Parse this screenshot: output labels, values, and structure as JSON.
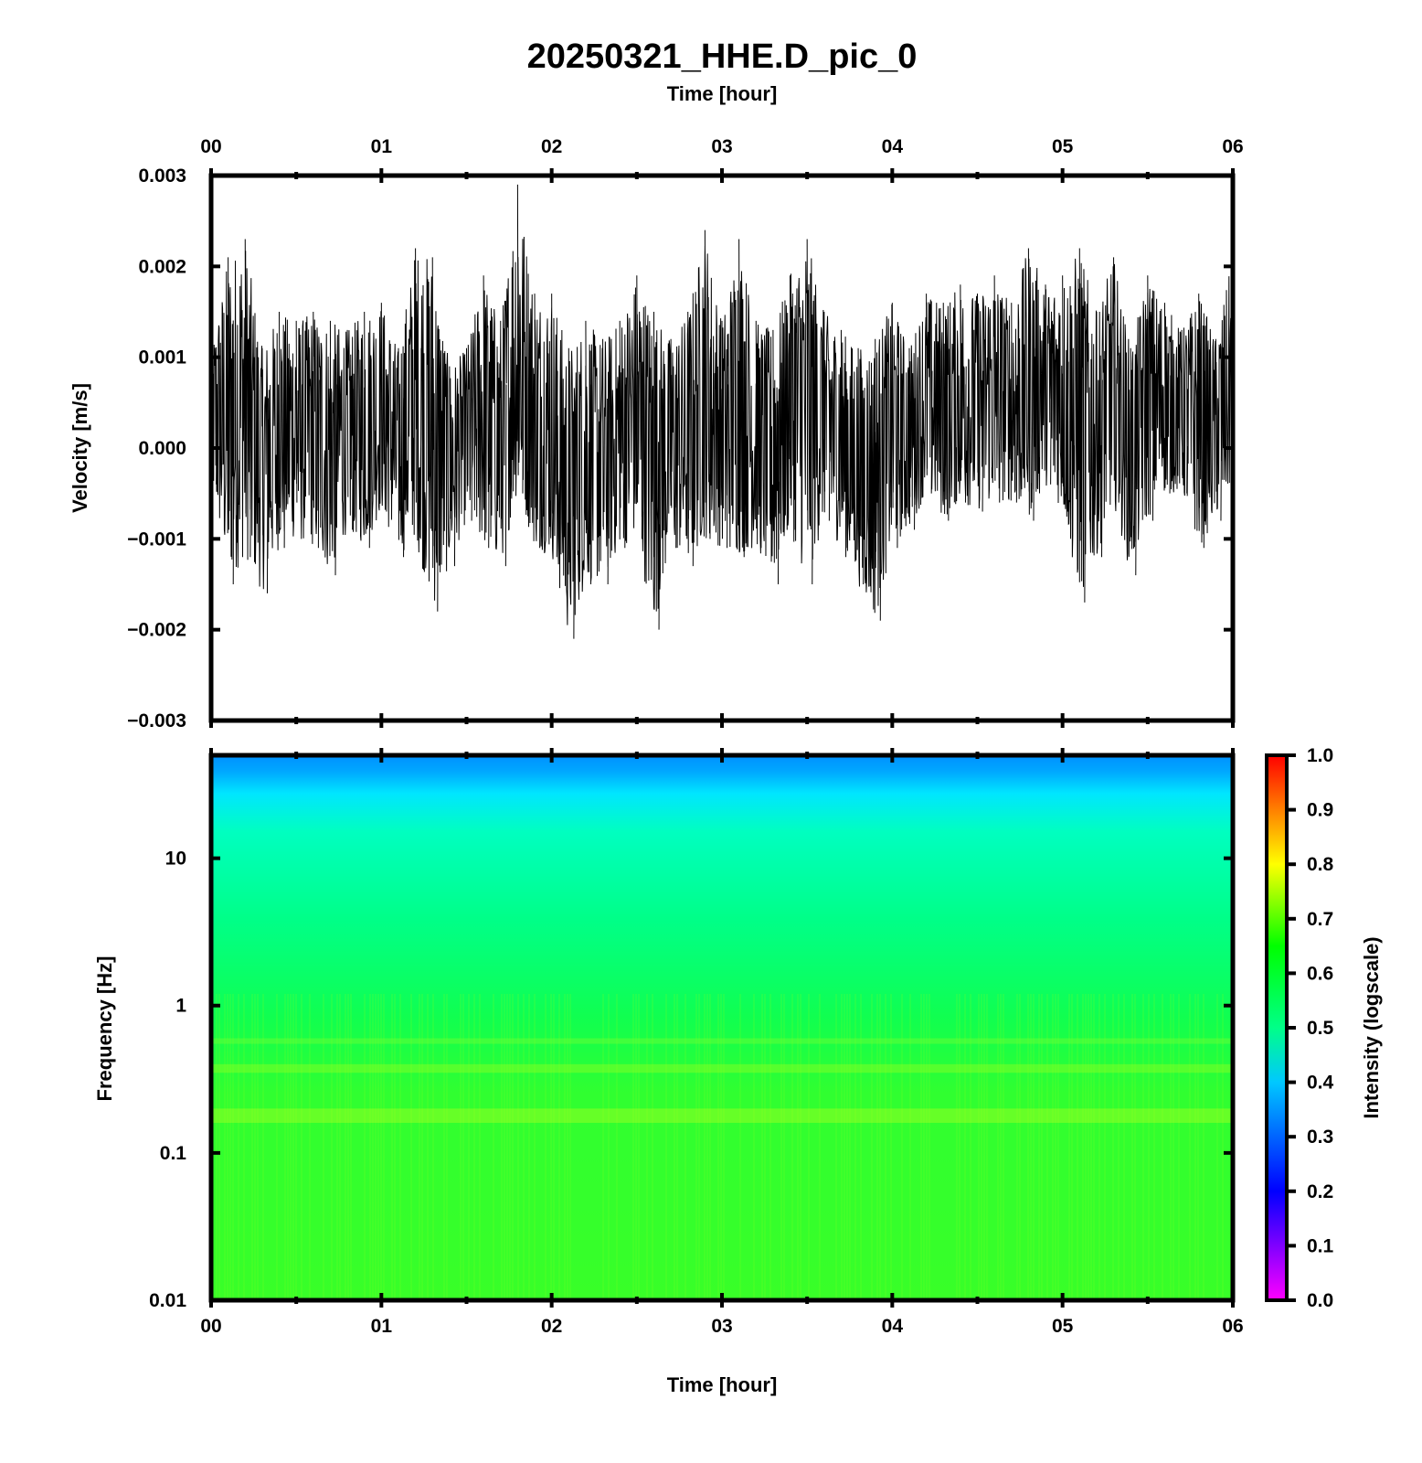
{
  "chart_data": [
    {
      "type": "line",
      "title": "20250321_HHE.D_pic_0",
      "top_xlabel": "Time [hour]",
      "ylabel": "Velocity [m/s]",
      "x_ticks": [
        "00",
        "01",
        "02",
        "03",
        "04",
        "05",
        "06"
      ],
      "xlim_hours": [
        0,
        6
      ],
      "y_ticks": [
        "0.003",
        "0.002",
        "0.001",
        "0.000",
        "−0.001",
        "−0.002",
        "−0.003"
      ],
      "ylim": [
        -0.003,
        0.003
      ],
      "grid": false,
      "series": [
        {
          "line_color": "#000000",
          "envelope_x_hours": [
            0.0,
            0.1,
            0.2,
            0.3,
            0.4,
            0.5,
            0.6,
            0.7,
            0.8,
            0.9,
            1.0,
            1.1,
            1.2,
            1.3,
            1.4,
            1.5,
            1.6,
            1.7,
            1.8,
            1.9,
            2.0,
            2.1,
            2.2,
            2.3,
            2.4,
            2.5,
            2.6,
            2.7,
            2.8,
            2.9,
            3.0,
            3.1,
            3.2,
            3.3,
            3.4,
            3.5,
            3.6,
            3.7,
            3.8,
            3.9,
            4.0,
            4.1,
            4.2,
            4.3,
            4.4,
            4.5,
            4.6,
            4.7,
            4.8,
            4.9,
            5.0,
            5.1,
            5.2,
            5.3,
            5.4,
            5.5,
            5.6,
            5.7,
            5.8,
            5.9,
            6.0
          ],
          "envelope_max": [
            0.0011,
            0.0021,
            0.0023,
            0.0011,
            0.0015,
            0.0014,
            0.0015,
            0.0014,
            0.0013,
            0.0015,
            0.0016,
            0.0011,
            0.0022,
            0.0021,
            0.0009,
            0.0011,
            0.0019,
            0.0014,
            0.0029,
            0.0017,
            0.0017,
            0.0011,
            0.0014,
            0.0012,
            0.0014,
            0.0019,
            0.0015,
            0.0012,
            0.0015,
            0.0024,
            0.0014,
            0.0023,
            0.0014,
            0.0013,
            0.0019,
            0.0023,
            0.0015,
            0.0013,
            0.0011,
            0.0012,
            0.0016,
            0.0011,
            0.0017,
            0.0016,
            0.0018,
            0.0017,
            0.0019,
            0.0016,
            0.0022,
            0.0018,
            0.0019,
            0.0022,
            0.0015,
            0.0021,
            0.0011,
            0.0019,
            0.0016,
            0.0013,
            0.0017,
            0.0012,
            0.0021
          ],
          "envelope_min": [
            -0.0004,
            -0.0015,
            -0.0012,
            -0.0016,
            -0.0011,
            -0.001,
            -0.0011,
            -0.0014,
            -0.0009,
            -0.0011,
            -0.0007,
            -0.0012,
            -0.001,
            -0.0018,
            -0.0013,
            -0.0008,
            -0.0011,
            -0.0013,
            -0.0005,
            -0.0011,
            -0.0012,
            -0.0021,
            -0.0015,
            -0.0015,
            -0.0011,
            -0.001,
            -0.002,
            -0.0011,
            -0.0013,
            -0.001,
            -0.0011,
            -0.0012,
            -0.0011,
            -0.0015,
            -0.0009,
            -0.0015,
            -0.0008,
            -0.0011,
            -0.0015,
            -0.0019,
            -0.0011,
            -0.0009,
            -0.0005,
            -0.0008,
            -0.0006,
            -0.0007,
            -0.0006,
            -0.0006,
            -0.0008,
            -0.0004,
            -0.0007,
            -0.0017,
            -0.0012,
            -0.0006,
            -0.0014,
            -0.0008,
            -0.0005,
            -0.0005,
            -0.0011,
            -0.0008,
            -0.0005
          ]
        }
      ]
    },
    {
      "type": "heatmap",
      "ylabel": "Frequency [Hz]",
      "xlabel": "Time [hour]",
      "x_ticks": [
        "00",
        "01",
        "02",
        "03",
        "04",
        "05",
        "06"
      ],
      "xlim_hours": [
        0,
        6
      ],
      "y_scale": "log",
      "y_ticks": [
        "10",
        "1",
        "0.1",
        "0.01"
      ],
      "ylim_hz": [
        0.01,
        50
      ],
      "colorbar": {
        "label": "Intensity (logscale)",
        "range": [
          0.0,
          1.0
        ],
        "ticks": [
          "1.0",
          "0.9",
          "0.8",
          "0.7",
          "0.6",
          "0.5",
          "0.4",
          "0.3",
          "0.2",
          "0.1",
          "0.0"
        ],
        "colors": [
          "#ff00ff",
          "#0000ff",
          "#00c8ff",
          "#00ff88",
          "#00ff00",
          "#ffff00",
          "#ff8000",
          "#ff0000"
        ]
      },
      "intensity_by_frequency": {
        "freq_hz": [
          0.01,
          0.05,
          0.2,
          0.4,
          1,
          5,
          10,
          20,
          30,
          50
        ],
        "intensity": [
          0.63,
          0.61,
          0.64,
          0.63,
          0.6,
          0.57,
          0.53,
          0.47,
          0.42,
          0.34
        ]
      }
    }
  ]
}
